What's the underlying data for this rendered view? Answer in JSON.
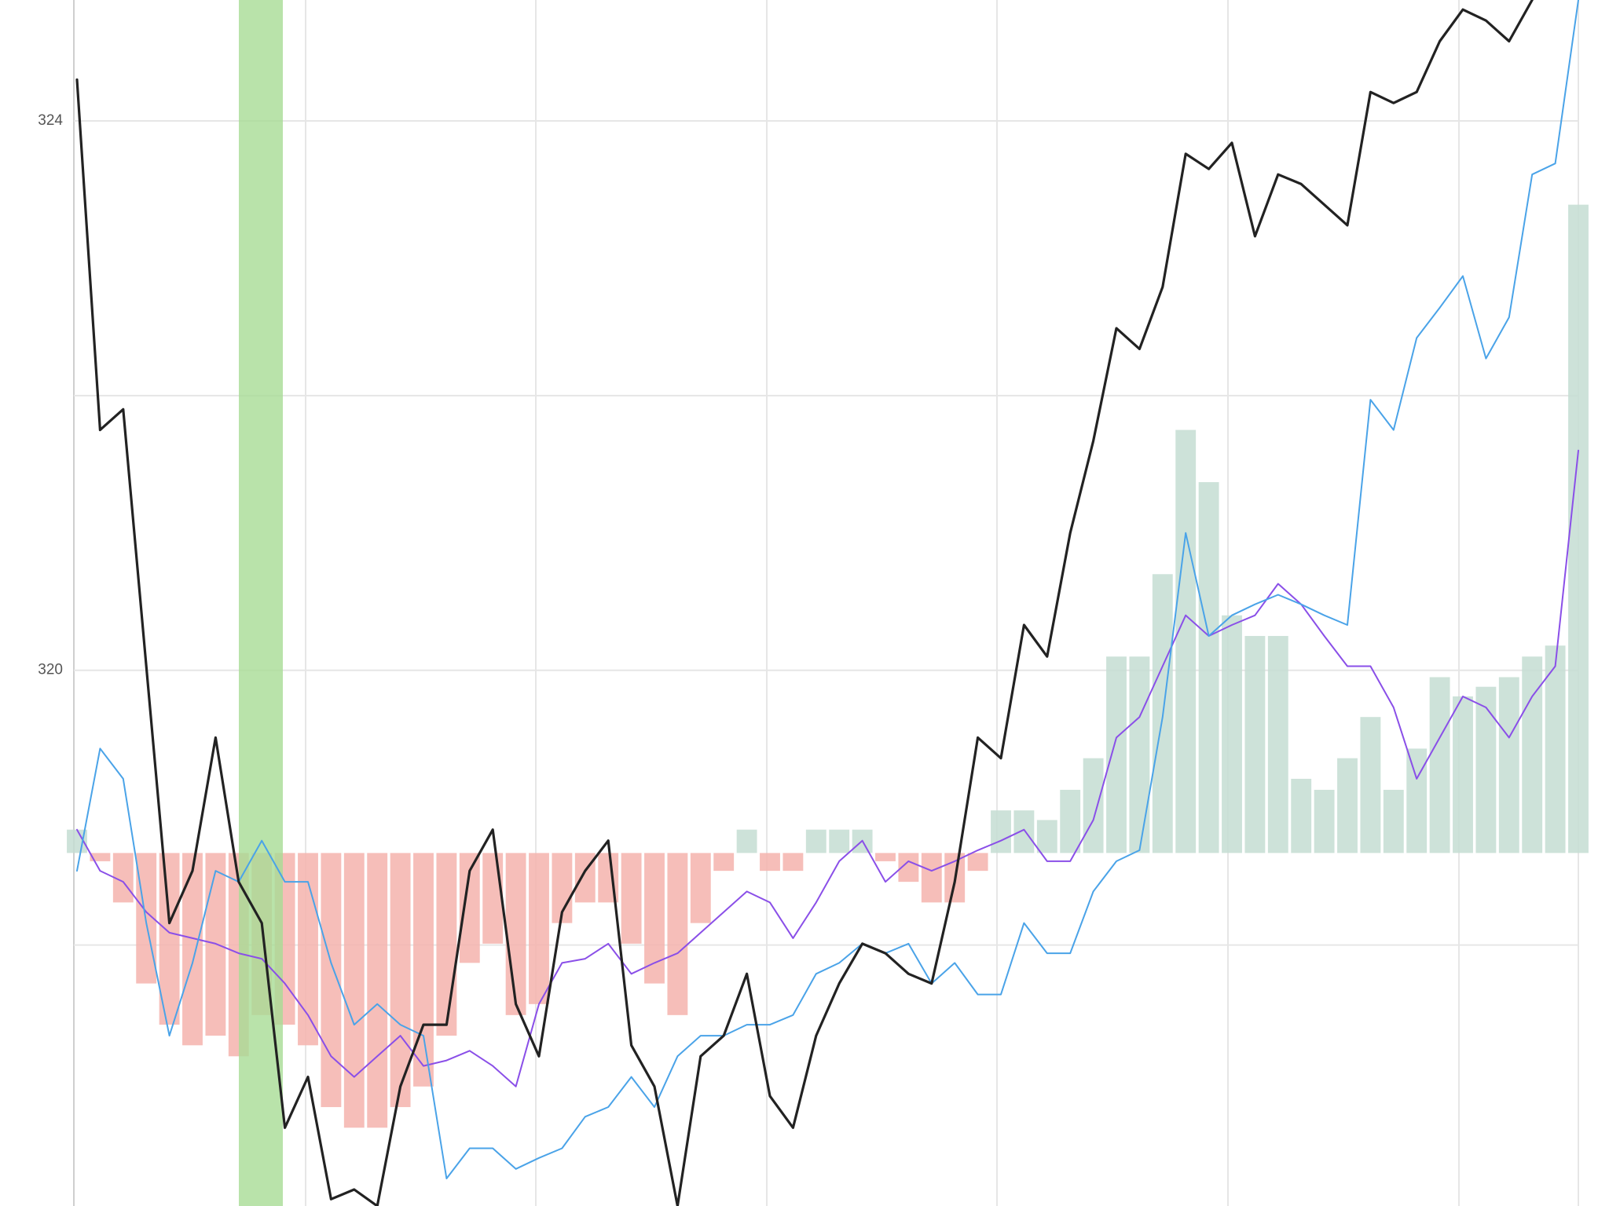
{
  "chart_data": {
    "type": "line",
    "categories": [
      null,
      null,
      null,
      null,
      null,
      null,
      null,
      null,
      null,
      null,
      null,
      null,
      null,
      null,
      null,
      null,
      null,
      null,
      null,
      null,
      null,
      null,
      null,
      null,
      null,
      null,
      null,
      null,
      null,
      null,
      null,
      null,
      null,
      null,
      null,
      null,
      null,
      null,
      null,
      null,
      null,
      null,
      null,
      null,
      null,
      null,
      null,
      null,
      null,
      null,
      null,
      null,
      null,
      null,
      null,
      null,
      null,
      null,
      null,
      null,
      null,
      null,
      null,
      null,
      null,
      null
    ],
    "ylim": [
      316.1,
      324.88
    ],
    "yticks": [
      {
        "value": 318,
        "label": null
      },
      320,
      {
        "value": 322,
        "label": null
      },
      324
    ],
    "grid": true,
    "bars": {
      "base": 318.67,
      "up_color": "#c4ddd2",
      "down_color": "#f5b3ad",
      "values": [
        318.84,
        318.61,
        318.31,
        317.72,
        317.42,
        317.27,
        317.34,
        317.19,
        317.49,
        317.42,
        317.27,
        316.82,
        316.67,
        316.67,
        316.82,
        316.97,
        317.34,
        317.87,
        318.01,
        317.49,
        317.57,
        318.16,
        318.31,
        318.31,
        318.01,
        317.72,
        317.49,
        318.16,
        318.54,
        318.84,
        318.54,
        318.54,
        318.84,
        318.84,
        318.84,
        318.61,
        318.46,
        318.31,
        318.31,
        318.54,
        318.98,
        318.98,
        318.91,
        319.13,
        319.36,
        320.1,
        320.1,
        320.7,
        321.75,
        321.37,
        320.4,
        320.25,
        320.25,
        319.21,
        319.13,
        319.36,
        319.66,
        319.13,
        319.43,
        319.95,
        319.81,
        319.88,
        319.95,
        320.1,
        320.18,
        323.39
      ]
    },
    "series": [
      {
        "color": "#8a4fe8",
        "width": 2,
        "values": [
          318.84,
          318.54,
          318.46,
          318.24,
          318.09,
          318.05,
          318.01,
          317.94,
          317.9,
          317.72,
          317.49,
          317.19,
          317.04,
          317.19,
          317.34,
          317.12,
          317.16,
          317.23,
          317.12,
          316.97,
          317.57,
          317.87,
          317.9,
          318.01,
          317.79,
          317.87,
          317.94,
          318.09,
          318.24,
          318.39,
          318.31,
          318.05,
          318.31,
          318.61,
          318.76,
          318.46,
          318.61,
          318.54,
          318.61,
          318.69,
          318.76,
          318.84,
          318.61,
          318.61,
          318.91,
          319.51,
          319.66,
          320.03,
          320.4,
          320.25,
          320.33,
          320.4,
          320.63,
          320.48,
          320.25,
          320.03,
          320.03,
          319.73,
          319.21,
          319.51,
          319.81,
          319.73,
          319.51,
          319.81,
          320.03,
          321.6
        ]
      },
      {
        "color": "#4aa3e8",
        "width": 2,
        "values": [
          318.54,
          319.43,
          319.21,
          318.16,
          317.34,
          317.87,
          318.54,
          318.46,
          318.76,
          318.46,
          318.46,
          317.87,
          317.42,
          317.57,
          317.42,
          317.34,
          316.3,
          316.52,
          316.52,
          316.37,
          316.45,
          316.52,
          316.75,
          316.82,
          317.04,
          316.82,
          317.19,
          317.34,
          317.34,
          317.42,
          317.42,
          317.49,
          317.79,
          317.87,
          318.01,
          317.94,
          318.01,
          317.72,
          317.87,
          317.64,
          317.64,
          318.16,
          317.94,
          317.94,
          318.39,
          318.61,
          318.69,
          319.66,
          321.0,
          320.25,
          320.4,
          320.48,
          320.55,
          320.48,
          320.4,
          320.33,
          321.97,
          321.75,
          322.42,
          322.64,
          322.87,
          322.27,
          322.57,
          323.61,
          323.69,
          324.88
        ]
      },
      {
        "color": "#222222",
        "width": 3.2,
        "values": [
          324.3,
          321.75,
          321.9,
          320.03,
          318.16,
          318.54,
          319.51,
          318.46,
          318.16,
          316.67,
          317.04,
          316.15,
          316.22,
          316.1,
          316.97,
          317.42,
          317.42,
          318.54,
          318.84,
          317.57,
          317.19,
          318.24,
          318.54,
          318.76,
          317.27,
          316.97,
          316.1,
          317.19,
          317.34,
          317.79,
          316.9,
          316.67,
          317.34,
          317.72,
          318.01,
          317.94,
          317.79,
          317.72,
          318.46,
          319.51,
          319.36,
          320.33,
          320.1,
          321.0,
          321.67,
          322.49,
          322.34,
          322.79,
          323.76,
          323.65,
          323.84,
          323.16,
          323.61,
          323.54,
          323.39,
          323.24,
          324.21,
          324.13,
          324.21,
          324.58,
          324.81,
          324.73,
          324.58,
          324.88,
          null,
          null
        ]
      }
    ]
  }
}
